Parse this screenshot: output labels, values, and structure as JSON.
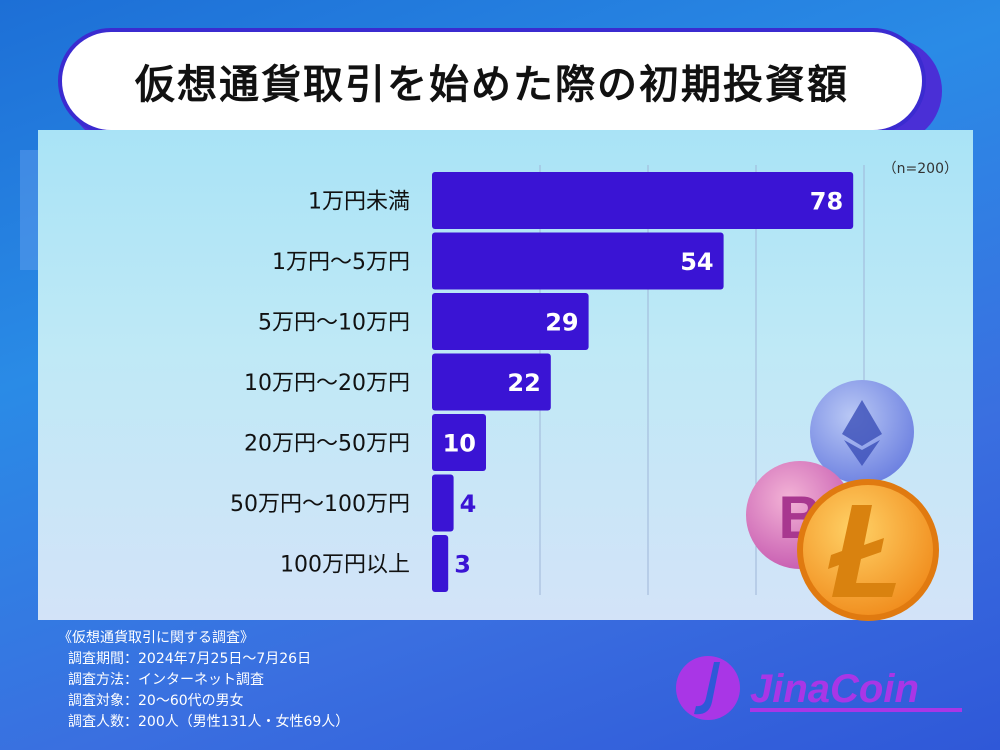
{
  "title": "仮想通貨取引を始めた際の初期投資額",
  "sample_note": "（n=200）",
  "chart_data": {
    "type": "bar",
    "orientation": "horizontal",
    "categories": [
      "1万円未満",
      "1万円〜5万円",
      "5万円〜10万円",
      "10万円〜20万円",
      "20万円〜50万円",
      "50万円〜100万円",
      "100万円以上"
    ],
    "values": [
      78,
      54,
      29,
      22,
      10,
      4,
      3
    ],
    "value_labels": [
      "78",
      "54",
      "29",
      "22",
      "10",
      "4",
      "3"
    ],
    "xlim": [
      0,
      100
    ],
    "grid": true,
    "bar_color": "#3a14d4"
  },
  "survey": {
    "heading": "《仮想通貨取引に関する調査》",
    "items": [
      "調査期間：2024年7月25日〜7月26日",
      "調査方法：インターネット調査",
      "調査対象：20〜60代の男女",
      "調査人数：200人（男性131人・女性69人）"
    ]
  },
  "logo": {
    "name": "JinaCoin"
  },
  "colors": {
    "title_border": "#3b2bd0",
    "logo": "#a936e6"
  }
}
